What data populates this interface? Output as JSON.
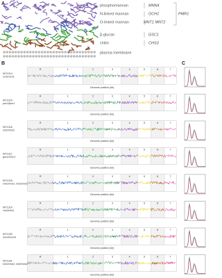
{
  "panels": {
    "A": {
      "letter": "A",
      "layers": [
        {
          "label": "phosphomannan",
          "gene": "MNN4"
        },
        {
          "label": "N-linked mannan",
          "gene": "OCH1"
        },
        {
          "label": "O-linked mannan",
          "gene": "MNT1  MNT2"
        },
        {
          "label": "β-glucan",
          "gene": "GSC1"
        },
        {
          "label": "chitin",
          "gene": "CHS3"
        },
        {
          "label": "plasma membrane"
        }
      ],
      "bracket_gene": "PMR1"
    },
    "B": {
      "letter": "B",
      "chromosomes": [
        "R",
        "1",
        "2",
        "3",
        "4",
        "5",
        "6",
        "7"
      ],
      "x_label": "Genome position (kb)",
      "rows": [
        {
          "strain": "WY1314",
          "genotype": "och1/och1"
        },
        {
          "strain": "WY1315",
          "genotype": "pmr1/pmr1"
        },
        {
          "strain": "WY1316",
          "genotype": "mnt1/mnt1"
        },
        {
          "strain": "WY1317",
          "genotype": "gsc1/GSC1"
        },
        {
          "strain": "WY1318",
          "genotype": "mnt1/mnt1; mnt2/mnt2"
        },
        {
          "strain": "WY1319",
          "genotype": "chs3/chs3"
        },
        {
          "strain": "WY1320",
          "genotype": "mnn4/mnn4"
        },
        {
          "strain": "WY1341",
          "genotype": "mnt1/mnt1; mnt2/mnt2 (rev)"
        }
      ]
    },
    "C": {
      "letter": "C"
    }
  }
}
